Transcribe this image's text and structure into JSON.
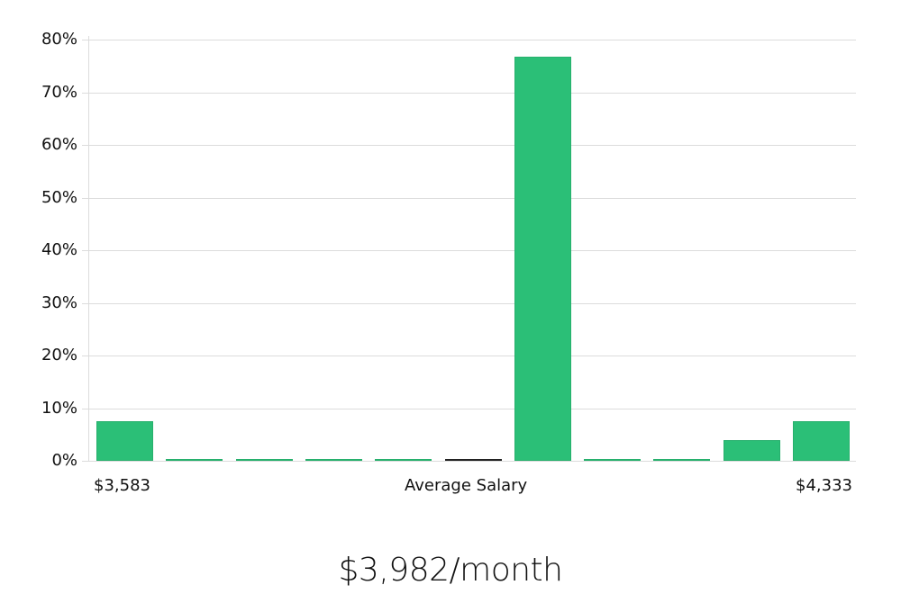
{
  "chart_data": {
    "type": "bar",
    "title": "",
    "xlabel": "Average Salary",
    "ylabel": "",
    "ylim": [
      0,
      80
    ],
    "yticks": [
      "0%",
      "10%",
      "20%",
      "30%",
      "40%",
      "50%",
      "60%",
      "70%",
      "80%"
    ],
    "grid": true,
    "legend": null,
    "x_range_labels": {
      "min": "$3,583",
      "max": "$4,333"
    },
    "categories": [
      "bin1",
      "bin2",
      "bin3",
      "bin4",
      "bin5",
      "bin6",
      "bin7",
      "bin8",
      "bin9",
      "bin10",
      "bin11"
    ],
    "values": [
      7.5,
      0,
      0,
      0,
      0,
      0,
      76.8,
      0,
      0,
      3.9,
      7.5
    ],
    "highlight_index": 5,
    "bar_color": "#2bbf77",
    "highlight_color": "#222222"
  },
  "axis": {
    "x_min_label": "$3,583",
    "x_center_label": "Average Salary",
    "x_max_label": "$4,333"
  },
  "footer": {
    "salary_text": "$3,982/month"
  }
}
